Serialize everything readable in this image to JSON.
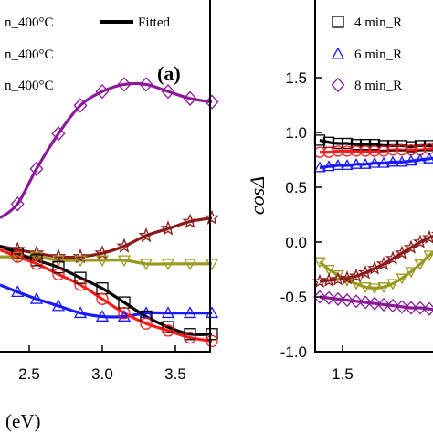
{
  "colors": {
    "black": "#000000",
    "red": "#ff1a1a",
    "blue": "#1a1aff",
    "purple": "#8a1a9a",
    "darkred": "#8b1a1a",
    "olive": "#9a9a20"
  },
  "chart_data": [
    {
      "type": "line",
      "panel_label": "(a)",
      "xlabel": "(eV)",
      "xlim": [
        2.3,
        3.75
      ],
      "ylim": [
        0,
        1
      ],
      "x_ticks": [
        "2.5",
        "3.0",
        "3.5"
      ],
      "x_tick_values": [
        2.5,
        3.0,
        3.5
      ],
      "legend": [
        {
          "label": "n_400°C",
          "marker": "square",
          "color": "black"
        },
        {
          "label": "Fitted",
          "marker": "line",
          "color": "black"
        },
        {
          "label": "n_400°C",
          "marker": "triangle",
          "color": "blue"
        },
        {
          "label": "n_400°C",
          "marker": "diamond",
          "color": "purple"
        }
      ],
      "series": [
        {
          "marker": "diamond",
          "color": "purple",
          "x": [
            2.3,
            2.42,
            2.55,
            2.7,
            2.85,
            3.0,
            3.15,
            3.3,
            3.45,
            3.6,
            3.75
          ],
          "y": [
            0.38,
            0.42,
            0.52,
            0.62,
            0.7,
            0.74,
            0.76,
            0.76,
            0.74,
            0.72,
            0.71
          ]
        },
        {
          "marker": "star",
          "color": "darkred",
          "x": [
            2.3,
            2.42,
            2.55,
            2.7,
            2.85,
            3.0,
            3.15,
            3.3,
            3.45,
            3.6,
            3.75
          ],
          "y": [
            0.3,
            0.29,
            0.28,
            0.27,
            0.27,
            0.28,
            0.3,
            0.33,
            0.35,
            0.37,
            0.38
          ]
        },
        {
          "marker": "triangle-down",
          "color": "olive",
          "x": [
            2.3,
            2.42,
            2.55,
            2.7,
            2.85,
            3.0,
            3.15,
            3.3,
            3.45,
            3.6,
            3.75
          ],
          "y": [
            0.27,
            0.27,
            0.27,
            0.26,
            0.26,
            0.26,
            0.26,
            0.25,
            0.25,
            0.25,
            0.25
          ]
        },
        {
          "marker": "triangle",
          "color": "blue",
          "x": [
            2.3,
            2.42,
            2.55,
            2.7,
            2.85,
            3.0,
            3.15,
            3.3,
            3.45,
            3.6,
            3.75
          ],
          "y": [
            0.19,
            0.17,
            0.15,
            0.13,
            0.11,
            0.1,
            0.1,
            0.11,
            0.11,
            0.11,
            0.11
          ]
        },
        {
          "marker": "square",
          "color": "black",
          "x": [
            2.3,
            2.42,
            2.55,
            2.7,
            2.85,
            3.0,
            3.15,
            3.3,
            3.45,
            3.6,
            3.75
          ],
          "y": [
            0.3,
            0.28,
            0.26,
            0.24,
            0.21,
            0.18,
            0.14,
            0.1,
            0.07,
            0.05,
            0.05
          ]
        },
        {
          "marker": "circle",
          "color": "red",
          "x": [
            2.3,
            2.42,
            2.55,
            2.7,
            2.85,
            3.0,
            3.15,
            3.3,
            3.45,
            3.6,
            3.75
          ],
          "y": [
            0.29,
            0.27,
            0.25,
            0.22,
            0.19,
            0.15,
            0.11,
            0.08,
            0.06,
            0.04,
            0.03
          ]
        }
      ]
    },
    {
      "type": "line",
      "ylabel": "cosΔ",
      "xlim": [
        1.2,
        2.6
      ],
      "ylim": [
        -1.0,
        1.8
      ],
      "x_ticks": [
        "1.5"
      ],
      "x_tick_values": [
        1.5
      ],
      "y_ticks": [
        "-1.0",
        "-0.5",
        "0.0",
        "0.5",
        "1.0",
        "1.5"
      ],
      "y_tick_values": [
        -1.0,
        -0.5,
        0.0,
        0.5,
        1.0,
        1.5
      ],
      "legend": [
        {
          "label": "4 min_R",
          "marker": "square",
          "color": "black"
        },
        {
          "label": "6 min_R",
          "marker": "triangle",
          "color": "blue"
        },
        {
          "label": "8 min_R",
          "marker": "diamond",
          "color": "purple"
        }
      ],
      "series": [
        {
          "marker": "square",
          "color": "black",
          "x": [
            1.25,
            1.35,
            1.45,
            1.55,
            1.65,
            1.75,
            1.85,
            1.95,
            2.05,
            2.15,
            2.25,
            2.35,
            2.45,
            2.55
          ],
          "y": [
            0.93,
            0.91,
            0.9,
            0.9,
            0.89,
            0.89,
            0.89,
            0.88,
            0.88,
            0.88,
            0.87,
            0.88,
            0.88,
            0.89
          ]
        },
        {
          "marker": "circle",
          "color": "red",
          "x": [
            1.25,
            1.35,
            1.45,
            1.55,
            1.65,
            1.75,
            1.85,
            1.95,
            2.05,
            2.15,
            2.25,
            2.35,
            2.45,
            2.55
          ],
          "y": [
            0.82,
            0.82,
            0.83,
            0.83,
            0.83,
            0.83,
            0.83,
            0.83,
            0.84,
            0.84,
            0.84,
            0.84,
            0.85,
            0.86
          ]
        },
        {
          "marker": "triangle",
          "color": "blue",
          "x": [
            1.25,
            1.35,
            1.45,
            1.55,
            1.65,
            1.75,
            1.85,
            1.95,
            2.05,
            2.15,
            2.25,
            2.35,
            2.45,
            2.55
          ],
          "y": [
            0.68,
            0.69,
            0.7,
            0.7,
            0.71,
            0.71,
            0.72,
            0.72,
            0.73,
            0.73,
            0.74,
            0.75,
            0.76,
            0.77
          ]
        },
        {
          "marker": "triangle-down",
          "color": "olive",
          "x": [
            1.25,
            1.35,
            1.45,
            1.55,
            1.65,
            1.75,
            1.85,
            1.95,
            2.05,
            2.15,
            2.25,
            2.35,
            2.45,
            2.55
          ],
          "y": [
            -0.18,
            -0.25,
            -0.3,
            -0.35,
            -0.38,
            -0.41,
            -0.42,
            -0.41,
            -0.38,
            -0.33,
            -0.27,
            -0.2,
            -0.12,
            -0.06
          ]
        },
        {
          "marker": "star",
          "color": "darkred",
          "x": [
            1.25,
            1.35,
            1.45,
            1.55,
            1.65,
            1.75,
            1.85,
            1.95,
            2.05,
            2.15,
            2.25,
            2.35,
            2.45,
            2.55
          ],
          "y": [
            -0.36,
            -0.35,
            -0.34,
            -0.33,
            -0.31,
            -0.28,
            -0.24,
            -0.2,
            -0.15,
            -0.1,
            -0.05,
            0.0,
            0.04,
            0.07
          ]
        },
        {
          "marker": "diamond",
          "color": "purple",
          "x": [
            1.25,
            1.35,
            1.45,
            1.55,
            1.65,
            1.75,
            1.85,
            1.95,
            2.05,
            2.15,
            2.25,
            2.35,
            2.45,
            2.55
          ],
          "y": [
            -0.5,
            -0.51,
            -0.52,
            -0.53,
            -0.54,
            -0.55,
            -0.56,
            -0.57,
            -0.58,
            -0.59,
            -0.6,
            -0.6,
            -0.61,
            -0.62
          ]
        }
      ]
    }
  ]
}
